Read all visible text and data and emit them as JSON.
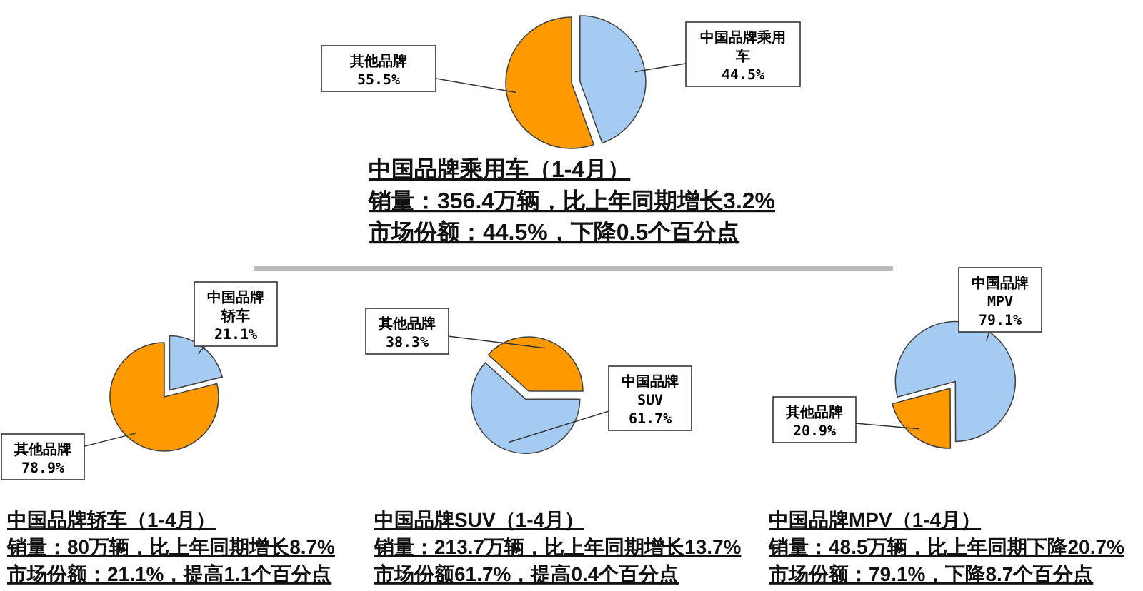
{
  "chart_data": [
    {
      "type": "pie",
      "title": "中国品牌乘用车（1-4月）",
      "annotations": [
        "销量：356.4万辆，比上年同期增长3.2%",
        "市场份额：44.5%，下降0.5个百分点"
      ],
      "categories": [
        "中国品牌乘用车",
        "其他品牌"
      ],
      "values": [
        44.5,
        55.5
      ],
      "value_labels": [
        "44.5%",
        "55.5%"
      ],
      "colors": [
        "#a6cbf2",
        "#ff9900"
      ]
    },
    {
      "type": "pie",
      "title": "中国品牌轿车（1-4月）",
      "annotations": [
        "销量：80万辆，比上年同期增长8.7%",
        "市场份额：21.1%，提高1.1个百分点"
      ],
      "categories": [
        "中国品牌轿车",
        "其他品牌"
      ],
      "values": [
        21.1,
        78.9
      ],
      "value_labels": [
        "21.1%",
        "78.9%"
      ],
      "colors": [
        "#a6cbf2",
        "#ff9900"
      ]
    },
    {
      "type": "pie",
      "title": "中国品牌SUV（1-4月）",
      "annotations": [
        "销量：213.7万辆，比上年同期增长13.7%",
        "市场份额61.7%，提高0.4个百分点"
      ],
      "categories": [
        "中国品牌SUV",
        "其他品牌"
      ],
      "values": [
        61.7,
        38.3
      ],
      "value_labels": [
        "61.7%",
        "38.3%"
      ],
      "colors": [
        "#a6cbf2",
        "#ff9900"
      ]
    },
    {
      "type": "pie",
      "title": "中国品牌MPV（1-4月）",
      "annotations": [
        "销量：48.5万辆，比上年同期下降20.7%",
        "市场份额：79.1%，下降8.7个百分点"
      ],
      "categories": [
        "中国品牌MPV",
        "其他品牌"
      ],
      "values": [
        79.1,
        20.9
      ],
      "value_labels": [
        "79.1%",
        "20.9%"
      ],
      "colors": [
        "#a6cbf2",
        "#ff9900"
      ]
    }
  ]
}
